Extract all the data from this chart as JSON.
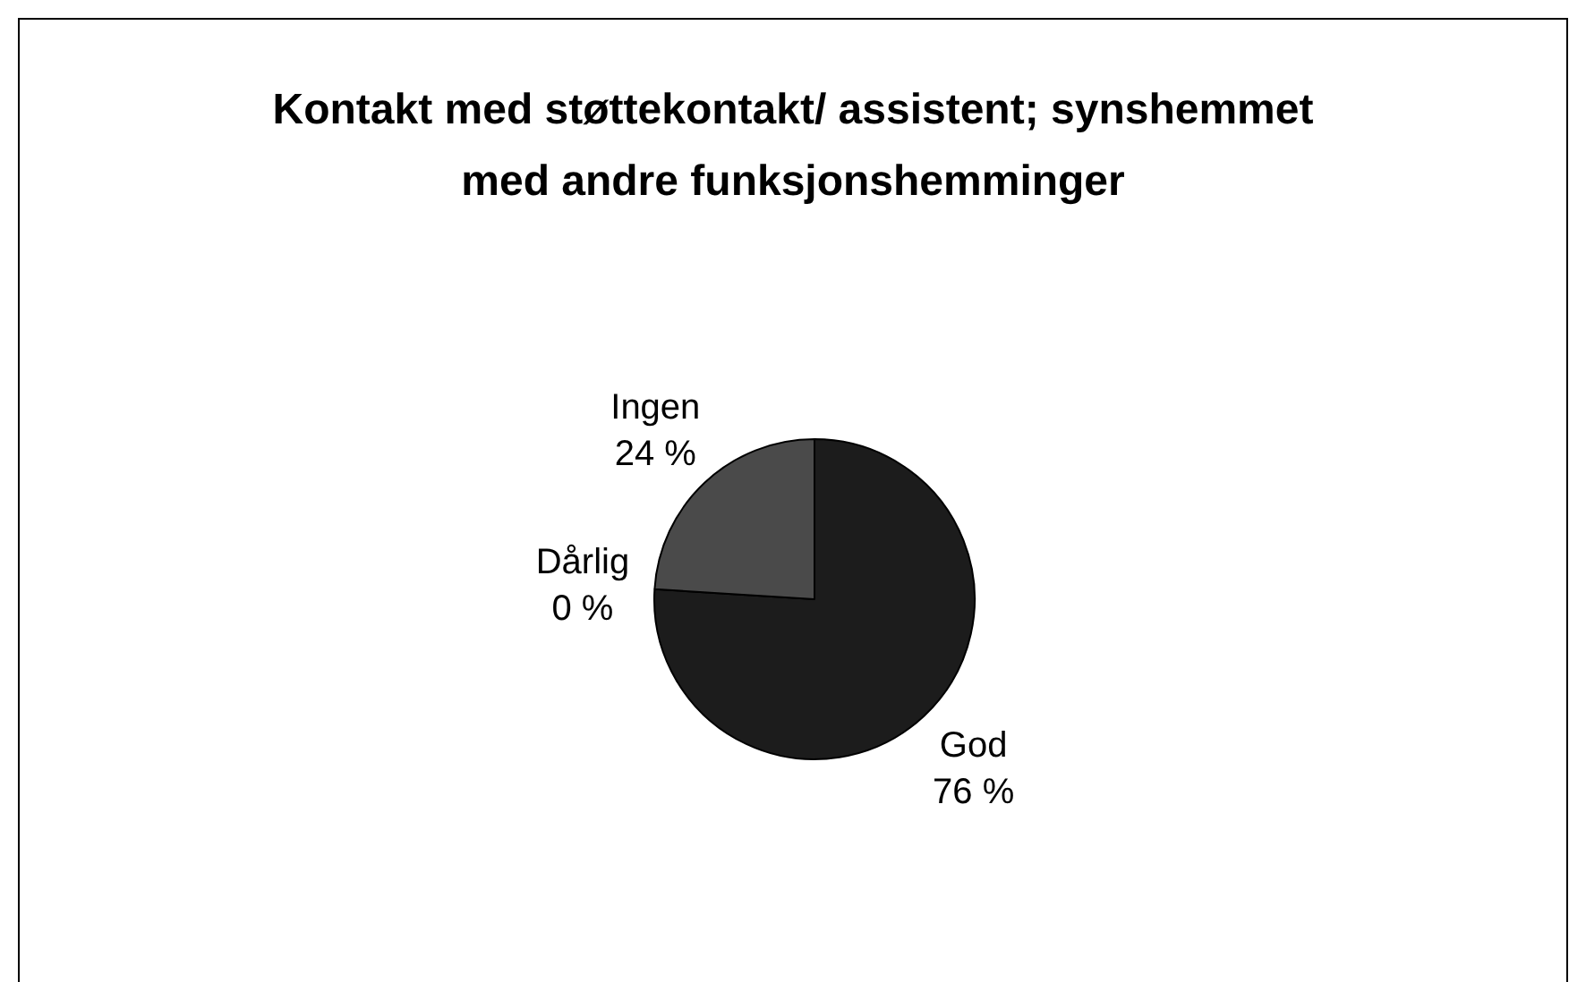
{
  "chart_data": {
    "type": "pie",
    "title": "Kontakt med støttekontakt/ assistent; synshemmet med andre funksjonshemminger",
    "categories": [
      "God",
      "Dårlig",
      "Ingen"
    ],
    "values": [
      76,
      0,
      24
    ],
    "value_labels": [
      "76 %",
      "0 %",
      "24 %"
    ],
    "colors": [
      "#1c1c1c",
      "#808080",
      "#4a4a4a"
    ],
    "legend": false
  }
}
